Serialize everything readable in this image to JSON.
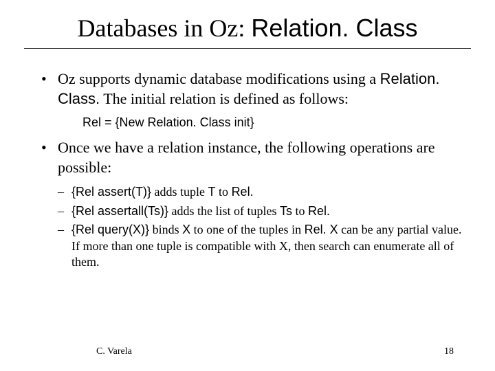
{
  "title": {
    "serif_part": "Databases in Oz: ",
    "sans_part": "Relation. Class"
  },
  "bullets": [
    {
      "pre_sans": "Oz supports dynamic database modifications using a ",
      "sans": "Relation. Class.",
      "post": " The initial relation is defined as follows:"
    },
    {
      "text": "Once we have a relation instance, the following operations are possible:"
    }
  ],
  "code_line": "Rel = {New Relation. Class init}",
  "sub_bullets": [
    {
      "code": "{Rel assert(T)}",
      "mid1": " adds tuple ",
      "sans1": "T",
      "mid2": " to ",
      "sans2": "Rel.",
      "tail": ""
    },
    {
      "code": "{Rel assertall(Ts)}",
      "mid1": " adds the list of tuples ",
      "sans1": "Ts",
      "mid2": " to ",
      "sans2": "Rel.",
      "tail": ""
    },
    {
      "code": "{Rel query(X)}",
      "mid1": " binds ",
      "sans1": "X",
      "mid2": " to one of the tuples in ",
      "sans2": "Rel.  X",
      "tail": " can be any partial value.  If more than one tuple is compatible with X, then search can enumerate all of them."
    }
  ],
  "footer": {
    "author": "C. Varela",
    "page_number": "18"
  }
}
